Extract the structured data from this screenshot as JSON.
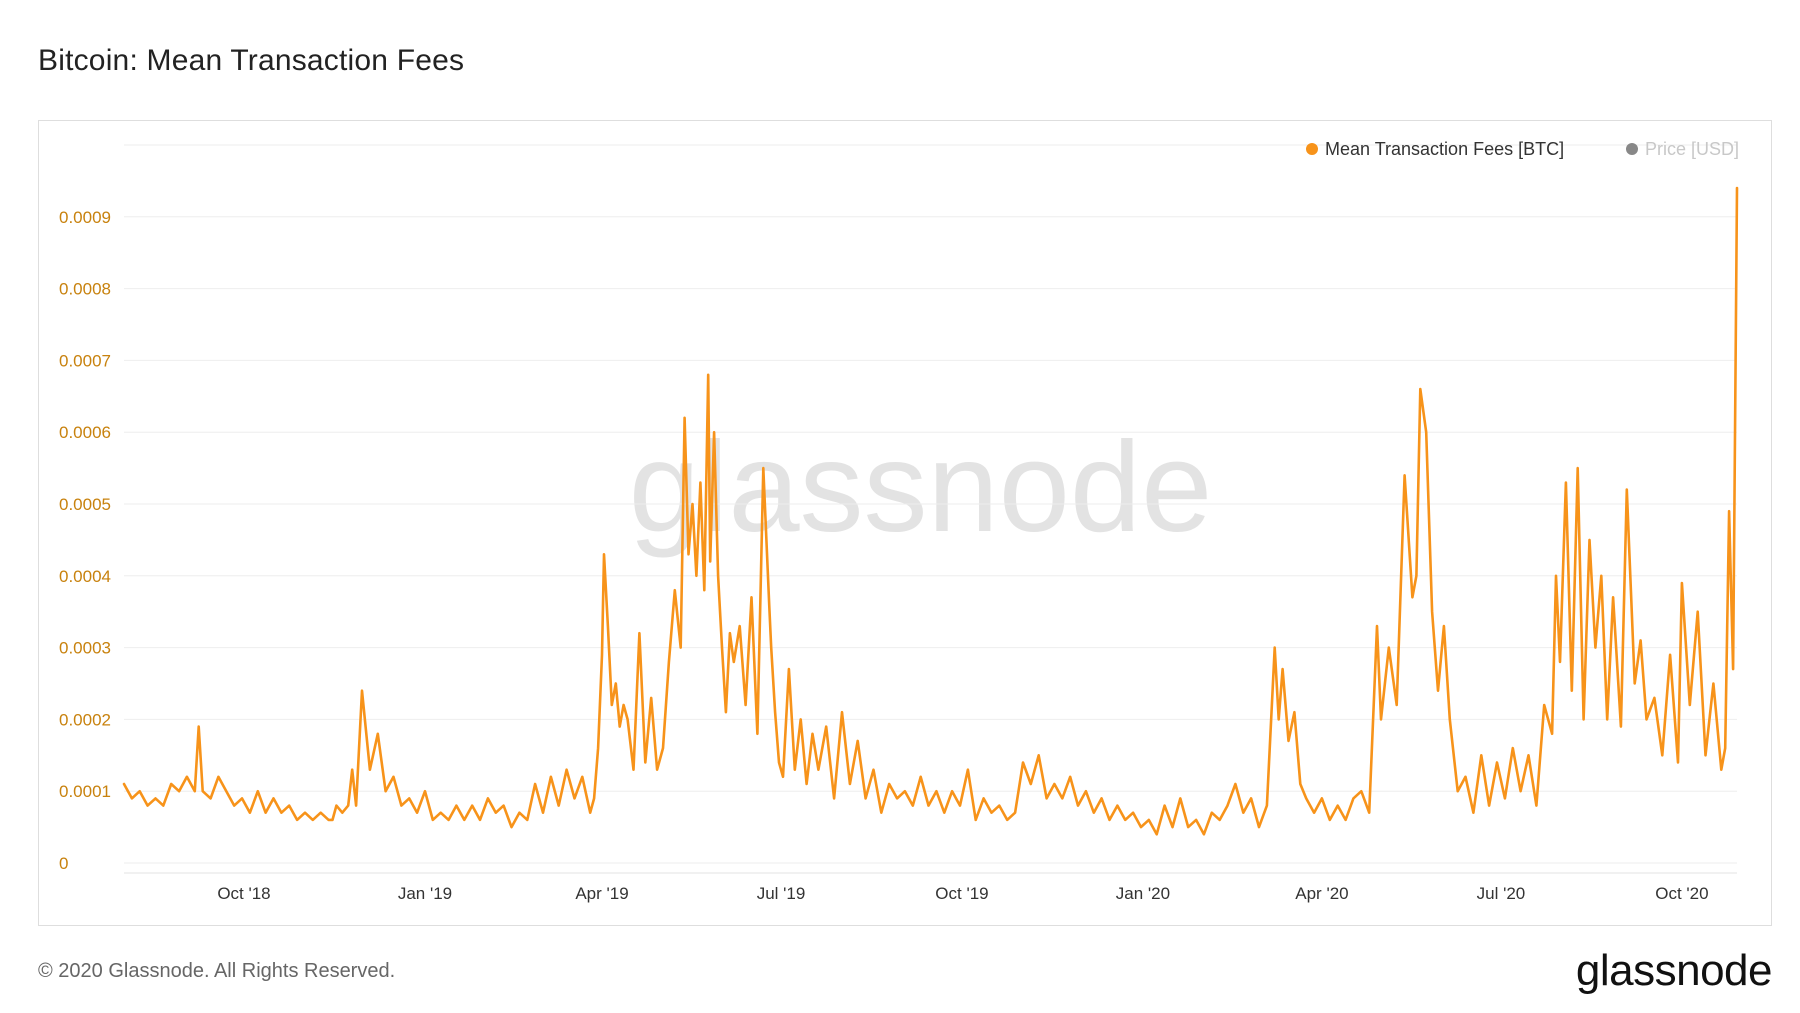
{
  "title": "Bitcoin: Mean Transaction Fees",
  "footer": {
    "copyright": "© 2020 Glassnode. All Rights Reserved.",
    "logo": "glassnode"
  },
  "watermark": "glassnode",
  "colors": {
    "series": "#f7931a",
    "axis_text": "#c8820e",
    "grid": "#eeeeee",
    "watermark": "#e3e3e3",
    "price_legend": "#888888",
    "price_legend_text": "#c8c8c8"
  },
  "chart_data": {
    "type": "line",
    "title": "Bitcoin: Mean Transaction Fees",
    "xlabel": "",
    "ylabel": "",
    "ylim": [
      0,
      0.001
    ],
    "y_ticks": [
      0,
      0.0001,
      0.0002,
      0.0003,
      0.0004,
      0.0005,
      0.0006,
      0.0007,
      0.0008,
      0.0009
    ],
    "y_tick_labels": [
      "0",
      "0.0001",
      "0.0002",
      "0.0003",
      "0.0004",
      "0.0005",
      "0.0006",
      "0.0007",
      "0.0008",
      "0.0009"
    ],
    "x_range": [
      "2018-08-01",
      "2020-10-29"
    ],
    "x_ticks": [
      {
        "date": "2018-10-01",
        "label": "Oct '18"
      },
      {
        "date": "2019-01-01",
        "label": "Jan '19"
      },
      {
        "date": "2019-04-01",
        "label": "Apr '19"
      },
      {
        "date": "2019-07-01",
        "label": "Jul '19"
      },
      {
        "date": "2019-10-01",
        "label": "Oct '19"
      },
      {
        "date": "2020-01-01",
        "label": "Jan '20"
      },
      {
        "date": "2020-04-01",
        "label": "Apr '20"
      },
      {
        "date": "2020-07-01",
        "label": "Jul '20"
      },
      {
        "date": "2020-10-01",
        "label": "Oct '20"
      }
    ],
    "grid": true,
    "legend_position": "top-right",
    "legend": [
      {
        "name": "Mean Transaction Fees [BTC]",
        "active": true
      },
      {
        "name": "Price [USD]",
        "active": false
      }
    ],
    "series": [
      {
        "name": "Mean Transaction Fees [BTC]",
        "x": [
          "2018-08-01",
          "2018-08-05",
          "2018-08-09",
          "2018-08-13",
          "2018-08-17",
          "2018-08-21",
          "2018-08-25",
          "2018-08-29",
          "2018-09-02",
          "2018-09-06",
          "2018-09-08",
          "2018-09-10",
          "2018-09-14",
          "2018-09-18",
          "2018-09-22",
          "2018-09-26",
          "2018-09-30",
          "2018-10-04",
          "2018-10-08",
          "2018-10-12",
          "2018-10-16",
          "2018-10-20",
          "2018-10-24",
          "2018-10-28",
          "2018-11-01",
          "2018-11-05",
          "2018-11-09",
          "2018-11-13",
          "2018-11-15",
          "2018-11-17",
          "2018-11-20",
          "2018-11-23",
          "2018-11-25",
          "2018-11-27",
          "2018-11-30",
          "2018-12-04",
          "2018-12-08",
          "2018-12-12",
          "2018-12-16",
          "2018-12-20",
          "2018-12-24",
          "2018-12-28",
          "2019-01-01",
          "2019-01-05",
          "2019-01-09",
          "2019-01-13",
          "2019-01-17",
          "2019-01-21",
          "2019-01-25",
          "2019-01-29",
          "2019-02-02",
          "2019-02-06",
          "2019-02-10",
          "2019-02-14",
          "2019-02-18",
          "2019-02-22",
          "2019-02-26",
          "2019-03-02",
          "2019-03-06",
          "2019-03-10",
          "2019-03-14",
          "2019-03-18",
          "2019-03-22",
          "2019-03-26",
          "2019-03-28",
          "2019-03-30",
          "2019-04-01",
          "2019-04-02",
          "2019-04-04",
          "2019-04-06",
          "2019-04-08",
          "2019-04-10",
          "2019-04-12",
          "2019-04-14",
          "2019-04-17",
          "2019-04-20",
          "2019-04-23",
          "2019-04-26",
          "2019-04-29",
          "2019-05-02",
          "2019-05-05",
          "2019-05-08",
          "2019-05-11",
          "2019-05-13",
          "2019-05-15",
          "2019-05-17",
          "2019-05-19",
          "2019-05-21",
          "2019-05-23",
          "2019-05-25",
          "2019-05-26",
          "2019-05-28",
          "2019-05-30",
          "2019-06-01",
          "2019-06-03",
          "2019-06-05",
          "2019-06-07",
          "2019-06-10",
          "2019-06-13",
          "2019-06-16",
          "2019-06-19",
          "2019-06-22",
          "2019-06-25",
          "2019-06-26",
          "2019-06-28",
          "2019-06-30",
          "2019-07-02",
          "2019-07-05",
          "2019-07-08",
          "2019-07-11",
          "2019-07-14",
          "2019-07-17",
          "2019-07-20",
          "2019-07-24",
          "2019-07-28",
          "2019-08-01",
          "2019-08-05",
          "2019-08-09",
          "2019-08-13",
          "2019-08-17",
          "2019-08-21",
          "2019-08-25",
          "2019-08-29",
          "2019-09-02",
          "2019-09-06",
          "2019-09-10",
          "2019-09-14",
          "2019-09-18",
          "2019-09-22",
          "2019-09-26",
          "2019-09-30",
          "2019-10-04",
          "2019-10-08",
          "2019-10-12",
          "2019-10-16",
          "2019-10-20",
          "2019-10-24",
          "2019-10-28",
          "2019-11-01",
          "2019-11-05",
          "2019-11-09",
          "2019-11-13",
          "2019-11-17",
          "2019-11-21",
          "2019-11-25",
          "2019-11-29",
          "2019-12-03",
          "2019-12-07",
          "2019-12-11",
          "2019-12-15",
          "2019-12-19",
          "2019-12-23",
          "2019-12-27",
          "2019-12-31",
          "2020-01-04",
          "2020-01-08",
          "2020-01-12",
          "2020-01-16",
          "2020-01-20",
          "2020-01-24",
          "2020-01-28",
          "2020-02-01",
          "2020-02-05",
          "2020-02-09",
          "2020-02-13",
          "2020-02-17",
          "2020-02-21",
          "2020-02-25",
          "2020-02-29",
          "2020-03-04",
          "2020-03-08",
          "2020-03-10",
          "2020-03-12",
          "2020-03-15",
          "2020-03-18",
          "2020-03-21",
          "2020-03-24",
          "2020-03-28",
          "2020-04-01",
          "2020-04-05",
          "2020-04-09",
          "2020-04-13",
          "2020-04-17",
          "2020-04-21",
          "2020-04-25",
          "2020-04-29",
          "2020-05-01",
          "2020-05-05",
          "2020-05-09",
          "2020-05-13",
          "2020-05-17",
          "2020-05-19",
          "2020-05-21",
          "2020-05-24",
          "2020-05-27",
          "2020-05-30",
          "2020-06-02",
          "2020-06-05",
          "2020-06-09",
          "2020-06-13",
          "2020-06-17",
          "2020-06-21",
          "2020-06-25",
          "2020-06-29",
          "2020-07-03",
          "2020-07-07",
          "2020-07-11",
          "2020-07-15",
          "2020-07-19",
          "2020-07-23",
          "2020-07-27",
          "2020-07-29",
          "2020-07-31",
          "2020-08-03",
          "2020-08-06",
          "2020-08-09",
          "2020-08-12",
          "2020-08-15",
          "2020-08-18",
          "2020-08-21",
          "2020-08-24",
          "2020-08-27",
          "2020-08-31",
          "2020-09-03",
          "2020-09-07",
          "2020-09-10",
          "2020-09-13",
          "2020-09-17",
          "2020-09-21",
          "2020-09-25",
          "2020-09-29",
          "2020-10-01",
          "2020-10-05",
          "2020-10-09",
          "2020-10-13",
          "2020-10-17",
          "2020-10-21",
          "2020-10-23",
          "2020-10-25",
          "2020-10-27",
          "2020-10-29"
        ],
        "y": [
          0.00011,
          9e-05,
          0.0001,
          8e-05,
          9e-05,
          8e-05,
          0.00011,
          0.0001,
          0.00012,
          0.0001,
          0.00019,
          0.0001,
          9e-05,
          0.00012,
          0.0001,
          8e-05,
          9e-05,
          7e-05,
          0.0001,
          7e-05,
          9e-05,
          7e-05,
          8e-05,
          6e-05,
          7e-05,
          6e-05,
          7e-05,
          6e-05,
          6e-05,
          8e-05,
          7e-05,
          8e-05,
          0.00013,
          8e-05,
          0.00024,
          0.00013,
          0.00018,
          0.0001,
          0.00012,
          8e-05,
          9e-05,
          7e-05,
          0.0001,
          6e-05,
          7e-05,
          6e-05,
          8e-05,
          6e-05,
          8e-05,
          6e-05,
          9e-05,
          7e-05,
          8e-05,
          5e-05,
          7e-05,
          6e-05,
          0.00011,
          7e-05,
          0.00012,
          8e-05,
          0.00013,
          9e-05,
          0.00012,
          7e-05,
          9e-05,
          0.00016,
          0.00029,
          0.00043,
          0.00033,
          0.00022,
          0.00025,
          0.00019,
          0.00022,
          0.0002,
          0.00013,
          0.00032,
          0.00014,
          0.00023,
          0.00013,
          0.00016,
          0.00028,
          0.00038,
          0.0003,
          0.00062,
          0.00043,
          0.0005,
          0.0004,
          0.00053,
          0.00038,
          0.00068,
          0.00042,
          0.0006,
          0.0004,
          0.0003,
          0.00021,
          0.00032,
          0.00028,
          0.00033,
          0.00022,
          0.00037,
          0.00018,
          0.00055,
          0.00036,
          0.0003,
          0.00021,
          0.00014,
          0.00012,
          0.00027,
          0.00013,
          0.0002,
          0.00011,
          0.00018,
          0.00013,
          0.00019,
          9e-05,
          0.00021,
          0.00011,
          0.00017,
          9e-05,
          0.00013,
          7e-05,
          0.00011,
          9e-05,
          0.0001,
          8e-05,
          0.00012,
          8e-05,
          0.0001,
          7e-05,
          0.0001,
          8e-05,
          0.00013,
          6e-05,
          9e-05,
          7e-05,
          8e-05,
          6e-05,
          7e-05,
          0.00014,
          0.00011,
          0.00015,
          9e-05,
          0.00011,
          9e-05,
          0.00012,
          8e-05,
          0.0001,
          7e-05,
          9e-05,
          6e-05,
          8e-05,
          6e-05,
          7e-05,
          5e-05,
          6e-05,
          4e-05,
          8e-05,
          5e-05,
          9e-05,
          5e-05,
          6e-05,
          4e-05,
          7e-05,
          6e-05,
          8e-05,
          0.00011,
          7e-05,
          9e-05,
          5e-05,
          8e-05,
          0.0003,
          0.0002,
          0.00027,
          0.00017,
          0.00021,
          0.00011,
          9e-05,
          7e-05,
          9e-05,
          6e-05,
          8e-05,
          6e-05,
          9e-05,
          0.0001,
          7e-05,
          0.00033,
          0.0002,
          0.0003,
          0.00022,
          0.00054,
          0.00037,
          0.0004,
          0.00066,
          0.0006,
          0.00035,
          0.00024,
          0.00033,
          0.0002,
          0.0001,
          0.00012,
          7e-05,
          0.00015,
          8e-05,
          0.00014,
          9e-05,
          0.00016,
          0.0001,
          0.00015,
          8e-05,
          0.00022,
          0.00018,
          0.0004,
          0.00028,
          0.00053,
          0.00024,
          0.00055,
          0.0002,
          0.00045,
          0.0003,
          0.0004,
          0.0002,
          0.00037,
          0.00019,
          0.00052,
          0.00025,
          0.00031,
          0.0002,
          0.00023,
          0.00015,
          0.00029,
          0.00014,
          0.00039,
          0.00022,
          0.00035,
          0.00015,
          0.00025,
          0.00013,
          0.00016,
          0.00049,
          0.00027,
          0.00094
        ]
      }
    ]
  }
}
